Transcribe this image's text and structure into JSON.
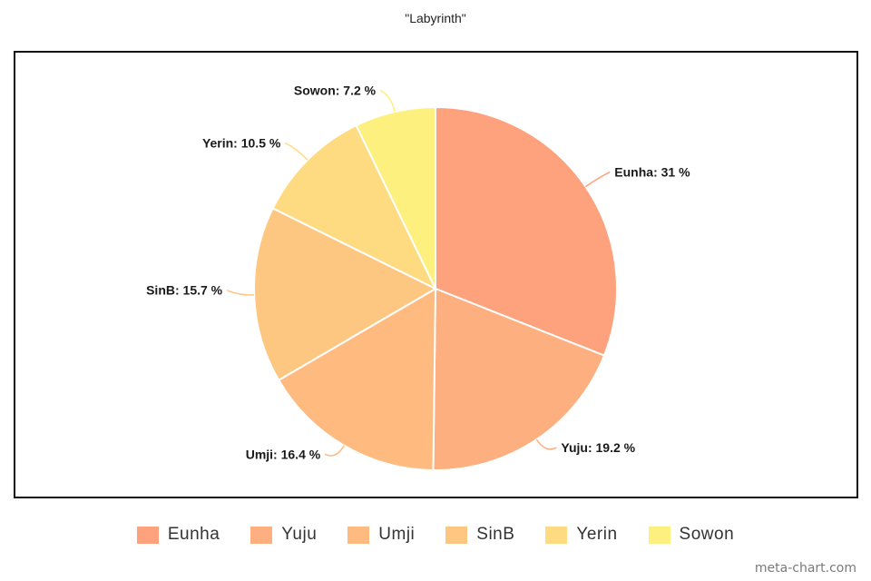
{
  "chart_data": {
    "type": "pie",
    "title": "\"Labyrinth\"",
    "unit": "%",
    "slices": [
      {
        "label": "Eunha",
        "value": 31,
        "display": "31",
        "color": "#fea27d"
      },
      {
        "label": "Yuju",
        "value": 19.2,
        "display": "19.2",
        "color": "#feaf7f"
      },
      {
        "label": "Umji",
        "value": 16.4,
        "display": "16.4",
        "color": "#feba7f"
      },
      {
        "label": "SinB",
        "value": 15.7,
        "display": "15.7",
        "color": "#fec781"
      },
      {
        "label": "Yerin",
        "value": 10.5,
        "display": "10.5",
        "color": "#fedb80"
      },
      {
        "label": "Sowon",
        "value": 7.2,
        "display": "7.2",
        "color": "#fef07f"
      }
    ],
    "legend_position": "bottom",
    "start_angle": "top, clockwise"
  },
  "watermark": "meta-chart.com"
}
